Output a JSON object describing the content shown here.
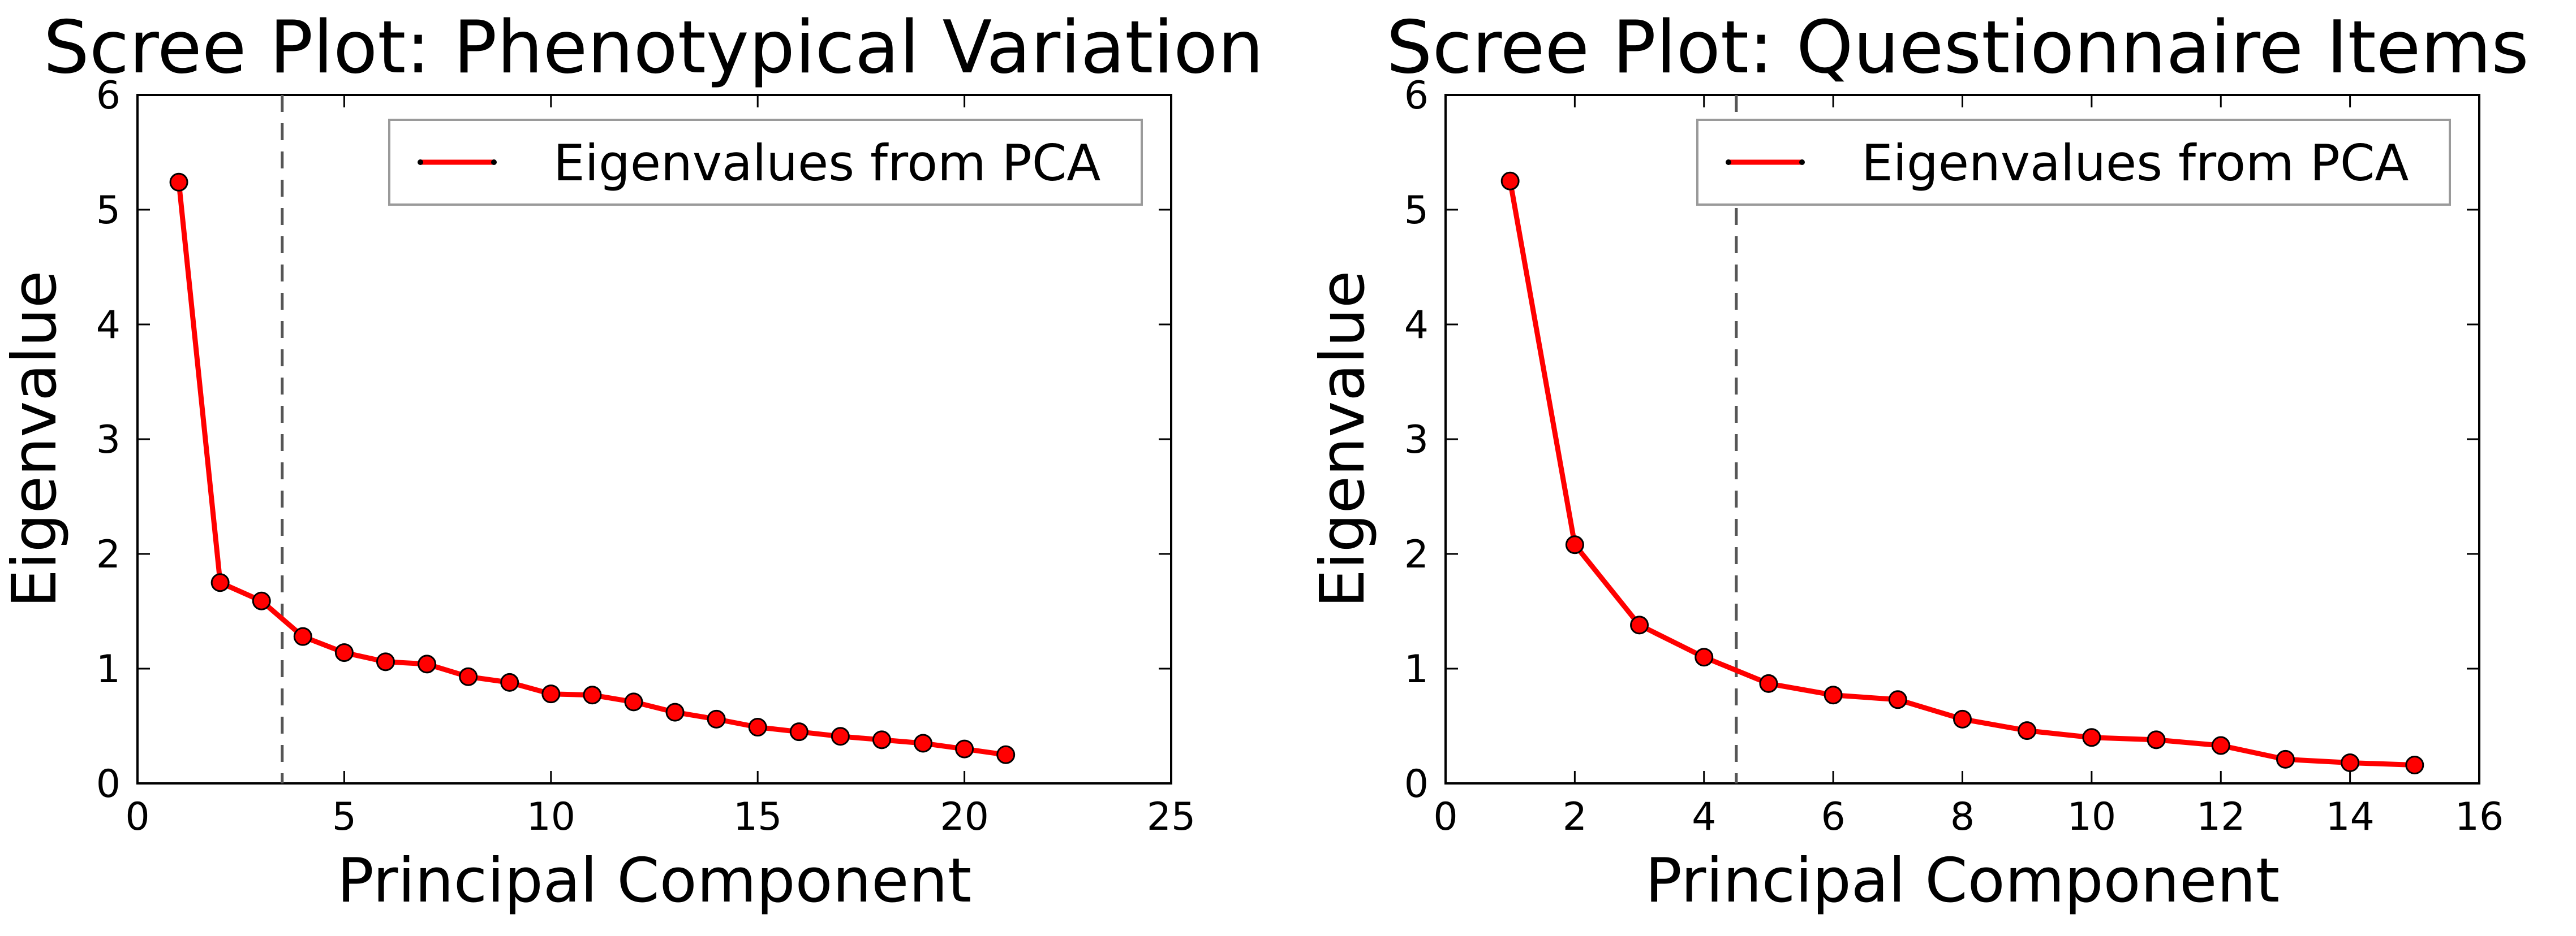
{
  "colors": {
    "series": "#ff0000",
    "marker_edge": "#000000",
    "cutoff_line": "#555555"
  },
  "chart_data": [
    {
      "type": "line",
      "title": "Scree Plot: Phenotypical Variation",
      "xlabel": "Principal Component",
      "ylabel": "Eigenvalue",
      "xlim": [
        0,
        25
      ],
      "ylim": [
        0,
        6
      ],
      "xticks": [
        0,
        5,
        10,
        15,
        20,
        25
      ],
      "yticks": [
        0,
        1,
        2,
        3,
        4,
        5,
        6
      ],
      "grid": false,
      "legend_position": "top-right",
      "cutoff_x": 3.5,
      "series": [
        {
          "name": "Eigenvalues from PCA",
          "x": [
            1,
            2,
            3,
            4,
            5,
            6,
            7,
            8,
            9,
            10,
            11,
            12,
            13,
            14,
            15,
            16,
            17,
            18,
            19,
            20,
            21
          ],
          "y": [
            5.24,
            1.75,
            1.59,
            1.28,
            1.14,
            1.06,
            1.04,
            0.93,
            0.88,
            0.78,
            0.77,
            0.71,
            0.62,
            0.56,
            0.49,
            0.45,
            0.41,
            0.38,
            0.35,
            0.3,
            0.25
          ]
        }
      ]
    },
    {
      "type": "line",
      "title": "Scree Plot: Questionnaire Items",
      "xlabel": "Principal Component",
      "ylabel": "Eigenvalue",
      "xlim": [
        0,
        16
      ],
      "ylim": [
        0,
        6
      ],
      "xticks": [
        0,
        2,
        4,
        6,
        8,
        10,
        12,
        14,
        16
      ],
      "yticks": [
        0,
        1,
        2,
        3,
        4,
        5,
        6
      ],
      "grid": false,
      "legend_position": "top-right",
      "cutoff_x": 4.5,
      "series": [
        {
          "name": "Eigenvalues from PCA",
          "x": [
            1,
            2,
            3,
            4,
            5,
            6,
            7,
            8,
            9,
            10,
            11,
            12,
            13,
            14,
            15
          ],
          "y": [
            5.25,
            2.08,
            1.38,
            1.1,
            0.87,
            0.77,
            0.73,
            0.56,
            0.46,
            0.4,
            0.38,
            0.33,
            0.21,
            0.18,
            0.16
          ]
        }
      ]
    }
  ]
}
